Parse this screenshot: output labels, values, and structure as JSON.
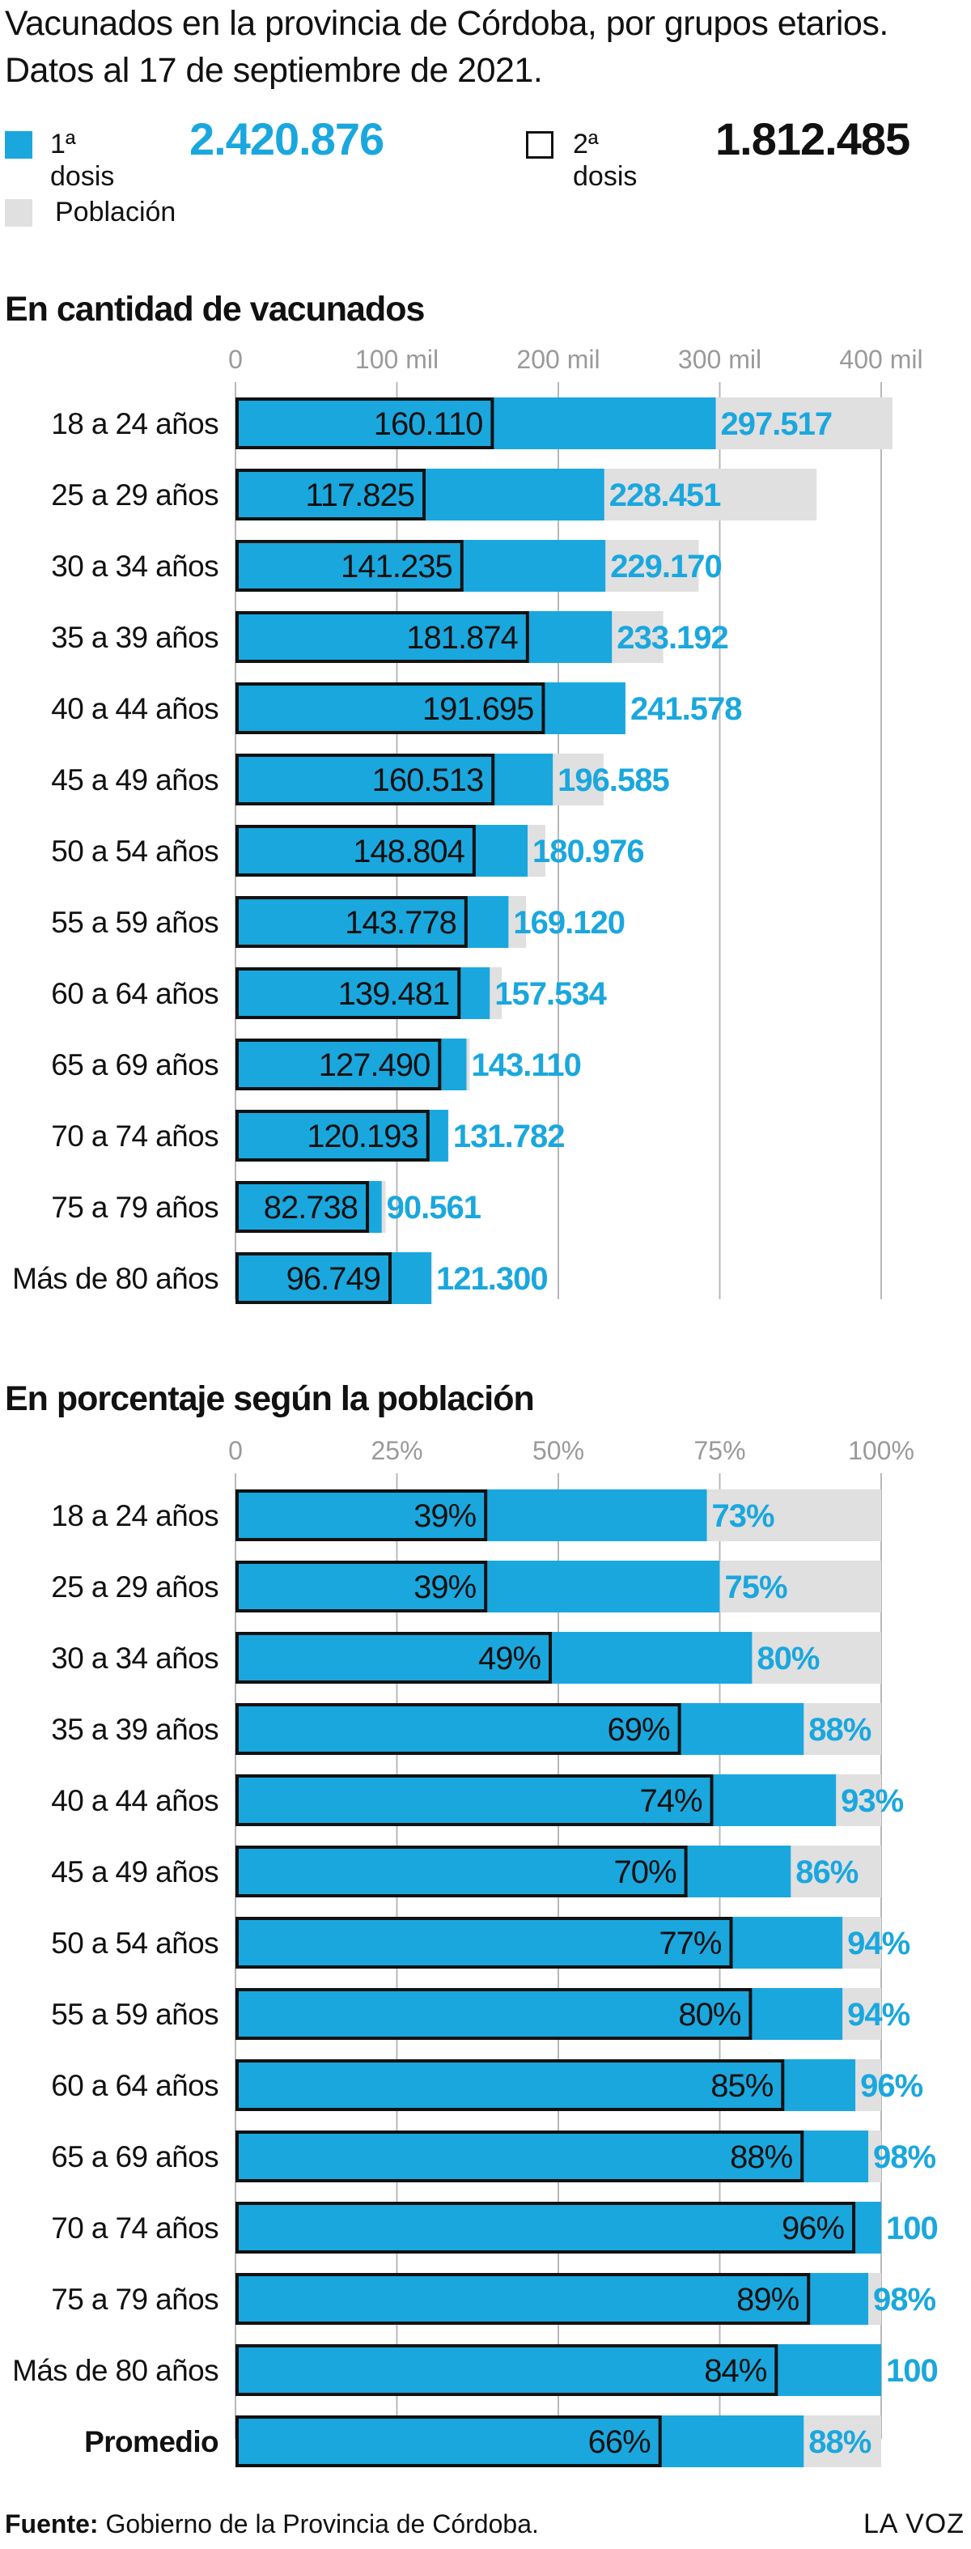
{
  "title": "Vacunados en la provincia de Córdoba, por grupos etarios. Datos al 17 de septiembre de 2021.",
  "legend": {
    "dose1_label": "1ª dosis",
    "dose1_total": "2.420.876",
    "dose2_label": "2ª dosis",
    "dose2_total": "1.812.485",
    "population_label": "Población"
  },
  "colors": {
    "dose1": "#1aa7de",
    "dose2_outline": "#111111",
    "population": "#e0e0e0",
    "gridline": "#b8b8b8"
  },
  "chart_data": [
    {
      "type": "bar",
      "orientation": "horizontal",
      "title": "En cantidad de vacunados",
      "xlim": [
        0,
        400000
      ],
      "xticks": [
        0,
        100000,
        200000,
        300000,
        400000
      ],
      "xtick_labels": [
        "0",
        "100 mil",
        "200 mil",
        "300 mil",
        "400 mil"
      ],
      "categories": [
        "18 a 24 años",
        "25 a 29 años",
        "30 a 34 años",
        "35 a 39 años",
        "40 a 44 años",
        "45 a 49 años",
        "50 a 54 años",
        "55 a 59 años",
        "60 a 64 años",
        "65 a 69 años",
        "70 a 74 años",
        "75 a 79  años",
        "Más de 80 años"
      ],
      "series": [
        {
          "name": "Población",
          "values": [
            407000,
            360000,
            287000,
            265000,
            240000,
            228000,
            192000,
            180000,
            165000,
            145000,
            132000,
            93000,
            122000
          ]
        },
        {
          "name": "1ª dosis",
          "values": [
            297517,
            228451,
            229170,
            233192,
            241578,
            196585,
            180976,
            169120,
            157534,
            143110,
            131782,
            90561,
            121300
          ]
        },
        {
          "name": "2ª dosis",
          "values": [
            160110,
            117825,
            141235,
            181874,
            191695,
            160513,
            148804,
            143778,
            139481,
            127490,
            120193,
            82738,
            96749
          ]
        }
      ],
      "labels_dose1": [
        "297.517",
        "228.451",
        "229.170",
        "233.192",
        "241.578",
        "196.585",
        "180.976",
        "169.120",
        "157.534",
        "143.110",
        "131.782",
        "90.561",
        "121.300"
      ],
      "labels_dose2": [
        "160.110",
        "117.825",
        "141.235",
        "181.874",
        "191.695",
        "160.513",
        "148.804",
        "143.778",
        "139.481",
        "127.490",
        "120.193",
        "82.738",
        "96.749"
      ]
    },
    {
      "type": "bar",
      "orientation": "horizontal",
      "title": "En porcentaje según la población",
      "xlim": [
        0,
        100
      ],
      "xticks": [
        0,
        25,
        50,
        75,
        100
      ],
      "xtick_labels": [
        "0",
        "25%",
        "50%",
        "75%",
        "100%"
      ],
      "categories": [
        "18 a 24 años",
        "25 a 29 años",
        "30 a 34 años",
        "35 a 39 años",
        "40 a 44 años",
        "45 a 49 años",
        "50 a 54 años",
        "55 a 59 años",
        "60 a 64 años",
        "65 a 69 años",
        "70 a 74 años",
        "75 a 79  años",
        "Más de 80 años",
        "Promedio"
      ],
      "series": [
        {
          "name": "Población",
          "values": [
            100,
            100,
            100,
            100,
            100,
            100,
            100,
            100,
            100,
            100,
            100,
            100,
            100,
            100
          ]
        },
        {
          "name": "1ª dosis",
          "values": [
            73,
            75,
            80,
            88,
            93,
            86,
            94,
            94,
            96,
            98,
            100,
            98,
            100,
            88
          ]
        },
        {
          "name": "2ª dosis",
          "values": [
            39,
            39,
            49,
            69,
            74,
            70,
            77,
            80,
            85,
            88,
            96,
            89,
            84,
            66
          ]
        }
      ],
      "labels_dose1": [
        "73%",
        "75%",
        "80%",
        "88%",
        "93%",
        "86%",
        "94%",
        "94%",
        "96%",
        "98%",
        "100",
        "98%",
        "100",
        "88%"
      ],
      "labels_dose2": [
        "39%",
        "39%",
        "49%",
        "69%",
        "74%",
        "70%",
        "77%",
        "80%",
        "85%",
        "88%",
        "96%",
        "89%",
        "84%",
        "66%"
      ],
      "bold_categories": [
        "Promedio"
      ]
    }
  ],
  "footer": {
    "source_label": "Fuente:",
    "source_text": " Gobierno de la Provincia de Córdoba.",
    "brand": "LA VOZ"
  }
}
